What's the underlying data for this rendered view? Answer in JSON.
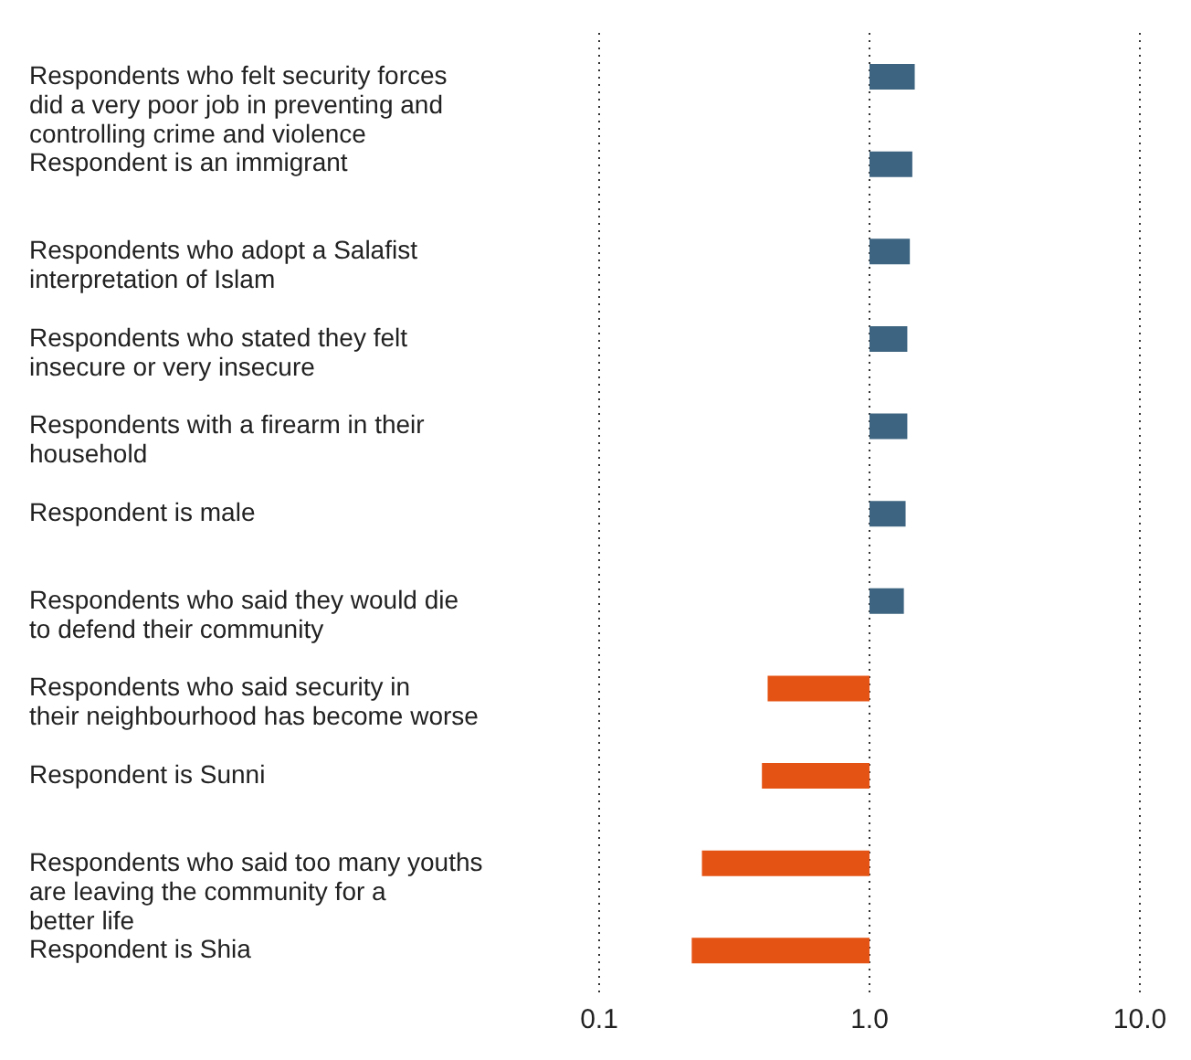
{
  "chart_data": {
    "type": "bar",
    "orientation": "horizontal",
    "log": "x",
    "categories": [
      "Respondents who felt security forces did a very poor job in preventing and controlling crime and violence",
      "Respondent is an immigrant",
      "Respondents who adopt a Salafist interpretation of Islam",
      "Respondents who stated they felt insecure or very insecure",
      "Respondents with a firearm in their household",
      "Respondent is male",
      "Respondents who said they would die to defend their community",
      "Respondents who said security in their neighbourhood has become worse",
      "Respondent is Sunni",
      "Respondents who said too many youths are leaving the community for a better life",
      "Respondent is Shia"
    ],
    "base": [
      1,
      1,
      1,
      1,
      1,
      1,
      1,
      1,
      1,
      1,
      1
    ],
    "values": [
      0.47,
      0.44,
      0.41,
      0.38,
      0.38,
      0.36,
      0.34,
      -0.58,
      -0.6,
      -0.76,
      -0.78
    ],
    "colors": [
      "#3d6480",
      "#3d6480",
      "#3d6480",
      "#3d6480",
      "#3d6480",
      "#3d6480",
      "#3d6480",
      "#e55314",
      "#e55314",
      "#e55314",
      "#e55314"
    ],
    "xlim": [
      0.1,
      10
    ],
    "xticks": [
      0.1,
      {
        "value": 1,
        "label": "1.0"
      },
      {
        "value": 10,
        "label": "10.0"
      }
    ],
    "grid": "x"
  }
}
